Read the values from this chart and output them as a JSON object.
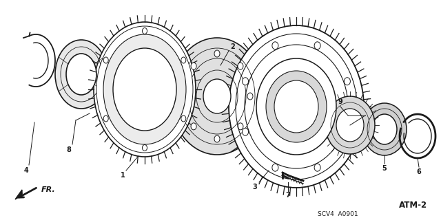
{
  "background_color": "#ffffff",
  "fig_width": 6.4,
  "fig_height": 3.2,
  "dpi": 100,
  "line_color": "#1a1a1a",
  "label_fs": 7,
  "bottom_right_text1": "SCV4  A0901",
  "bottom_right_text2": "ATM-2"
}
